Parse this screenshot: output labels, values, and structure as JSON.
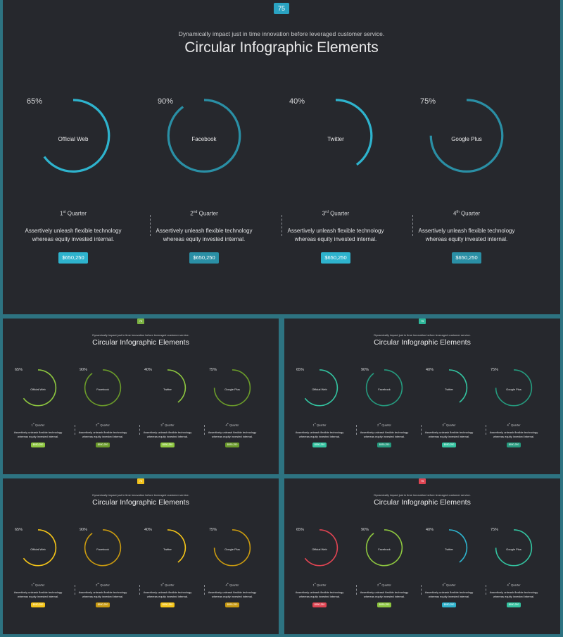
{
  "slides": [
    {
      "id": "main",
      "page_number": "75",
      "tag_color": "#2aa3c2",
      "subtitle": "Dynamically impact just in time innovation  before leveraged customer service.",
      "title": "Circular Infographic Elements",
      "items": [
        {
          "percent": 65,
          "percent_text": "65%",
          "label": "Official Web",
          "quarter_num": "1",
          "quarter_sup": "st",
          "quarter_word": " Quarter",
          "desc_line1": "Assertively unleash flexible technology",
          "desc_line2": "whereas equity invested internal.",
          "price": "$650,250",
          "color": "#2eb3cd"
        },
        {
          "percent": 90,
          "percent_text": "90%",
          "label": "Facebook",
          "quarter_num": "2",
          "quarter_sup": "nd",
          "quarter_word": " Quarter",
          "desc_line1": "Assertively unleash flexible technology",
          "desc_line2": "whereas equity invested internal.",
          "price": "$650,250",
          "color": "#2a8fa5"
        },
        {
          "percent": 40,
          "percent_text": "40%",
          "label": "Twitter",
          "quarter_num": "3",
          "quarter_sup": "rd",
          "quarter_word": "  Quarter",
          "desc_line1": "Assertively unleash flexible technology",
          "desc_line2": "whereas equity invested internal.",
          "price": "$650,250",
          "color": "#2eb3cd"
        },
        {
          "percent": 75,
          "percent_text": "75%",
          "label": "Google Plus",
          "quarter_num": "4",
          "quarter_sup": "th",
          "quarter_word": "  Quarter",
          "desc_line1": "Assertively unleash flexible technology",
          "desc_line2": "whereas equity invested internal.",
          "price": "$650,250",
          "color": "#2a8fa5"
        }
      ]
    },
    {
      "id": "green",
      "page_number": "75",
      "tag_color": "#7cb342",
      "subtitle": "Dynamically impact just in time innovation  before leveraged customer service.",
      "title": "Circular Infographic Elements",
      "items": [
        {
          "percent": 65,
          "percent_text": "65%",
          "label": "Official Web",
          "quarter_num": "1",
          "quarter_sup": "st",
          "quarter_word": " Quarter",
          "desc_line1": "Assertively unleash flexible technology",
          "desc_line2": "whereas equity invested internal.",
          "price": "$650,250",
          "color": "#8dc63f"
        },
        {
          "percent": 90,
          "percent_text": "90%",
          "label": "Facebook",
          "quarter_num": "2",
          "quarter_sup": "nd",
          "quarter_word": " Quarter",
          "desc_line1": "Assertively unleash flexible technology",
          "desc_line2": "whereas equity invested internal.",
          "price": "$650,250",
          "color": "#6a9a2a"
        },
        {
          "percent": 40,
          "percent_text": "40%",
          "label": "Twitter",
          "quarter_num": "3",
          "quarter_sup": "rd",
          "quarter_word": "  Quarter",
          "desc_line1": "Assertively unleash flexible technology",
          "desc_line2": "whereas equity invested internal.",
          "price": "$650,250",
          "color": "#8dc63f"
        },
        {
          "percent": 75,
          "percent_text": "75%",
          "label": "Google Plus",
          "quarter_num": "4",
          "quarter_sup": "th",
          "quarter_word": "  Quarter",
          "desc_line1": "Assertively unleash flexible technology",
          "desc_line2": "whereas equity invested internal.",
          "price": "$650,250",
          "color": "#6a9a2a"
        }
      ]
    },
    {
      "id": "teal",
      "page_number": "75",
      "tag_color": "#2eb89a",
      "subtitle": "Dynamically impact just in time innovation  before leveraged customer service.",
      "title": "Circular Infographic Elements",
      "items": [
        {
          "percent": 65,
          "percent_text": "65%",
          "label": "Official Web",
          "quarter_num": "1",
          "quarter_sup": "st",
          "quarter_word": " Quarter",
          "desc_line1": "Assertively unleash flexible technology",
          "desc_line2": "whereas equity invested internal.",
          "price": "$650,250",
          "color": "#33c3a0"
        },
        {
          "percent": 90,
          "percent_text": "90%",
          "label": "Facebook",
          "quarter_num": "2",
          "quarter_sup": "nd",
          "quarter_word": " Quarter",
          "desc_line1": "Assertively unleash flexible technology",
          "desc_line2": "whereas equity invested internal.",
          "price": "$650,250",
          "color": "#259a7e"
        },
        {
          "percent": 40,
          "percent_text": "40%",
          "label": "Twitter",
          "quarter_num": "3",
          "quarter_sup": "rd",
          "quarter_word": "  Quarter",
          "desc_line1": "Assertively unleash flexible technology",
          "desc_line2": "whereas equity invested internal.",
          "price": "$650,250",
          "color": "#33c3a0"
        },
        {
          "percent": 75,
          "percent_text": "75%",
          "label": "Google Plus",
          "quarter_num": "4",
          "quarter_sup": "th",
          "quarter_word": "  Quarter",
          "desc_line1": "Assertively unleash flexible technology",
          "desc_line2": "whereas equity invested internal.",
          "price": "$650,250",
          "color": "#259a7e"
        }
      ]
    },
    {
      "id": "yellow",
      "page_number": "75",
      "tag_color": "#f2c21b",
      "subtitle": "Dynamically impact just in time innovation  before leveraged customer service.",
      "title": "Circular Infographic Elements",
      "items": [
        {
          "percent": 65,
          "percent_text": "65%",
          "label": "Official Web",
          "quarter_num": "1",
          "quarter_sup": "st",
          "quarter_word": " Quarter",
          "desc_line1": "Assertively unleash flexible technology",
          "desc_line2": "whereas equity invested internal.",
          "price": "$650,250",
          "color": "#f5c518"
        },
        {
          "percent": 90,
          "percent_text": "90%",
          "label": "Facebook",
          "quarter_num": "2",
          "quarter_sup": "nd",
          "quarter_word": " Quarter",
          "desc_line1": "Assertively unleash flexible technology",
          "desc_line2": "whereas equity invested internal.",
          "price": "$650,250",
          "color": "#c99a10"
        },
        {
          "percent": 40,
          "percent_text": "40%",
          "label": "Twitter",
          "quarter_num": "3",
          "quarter_sup": "rd",
          "quarter_word": "  Quarter",
          "desc_line1": "Assertively unleash flexible technology",
          "desc_line2": "whereas equity invested internal.",
          "price": "$650,250",
          "color": "#f5c518"
        },
        {
          "percent": 75,
          "percent_text": "75%",
          "label": "Google Plus",
          "quarter_num": "4",
          "quarter_sup": "th",
          "quarter_word": "  Quarter",
          "desc_line1": "Assertively unleash flexible technology",
          "desc_line2": "whereas equity invested internal.",
          "price": "$650,250",
          "color": "#c99a10"
        }
      ]
    },
    {
      "id": "multi",
      "page_number": "75",
      "tag_color": "#e04452",
      "subtitle": "Dynamically impact just in time innovation  before leveraged customer service.",
      "title": "Circular Infographic Elements",
      "items": [
        {
          "percent": 65,
          "percent_text": "65%",
          "label": "Official Web",
          "quarter_num": "1",
          "quarter_sup": "st",
          "quarter_word": " Quarter",
          "desc_line1": "Assertively unleash flexible technology",
          "desc_line2": "whereas equity invested internal.",
          "price": "$650,250",
          "color": "#e04452"
        },
        {
          "percent": 90,
          "percent_text": "90%",
          "label": "Facebook",
          "quarter_num": "2",
          "quarter_sup": "nd",
          "quarter_word": " Quarter",
          "desc_line1": "Assertively unleash flexible technology",
          "desc_line2": "whereas equity invested internal.",
          "price": "$650,250",
          "color": "#8dc63f"
        },
        {
          "percent": 40,
          "percent_text": "40%",
          "label": "Twitter",
          "quarter_num": "3",
          "quarter_sup": "rd",
          "quarter_word": "  Quarter",
          "desc_line1": "Assertively unleash flexible technology",
          "desc_line2": "whereas equity invested internal.",
          "price": "$650,250",
          "color": "#2eb3cd"
        },
        {
          "percent": 75,
          "percent_text": "75%",
          "label": "Google Plus",
          "quarter_num": "4",
          "quarter_sup": "th",
          "quarter_word": "  Quarter",
          "desc_line1": "Assertively unleash flexible technology",
          "desc_line2": "whereas equity invested internal.",
          "price": "$650,250",
          "color": "#33c3a0"
        }
      ]
    }
  ]
}
